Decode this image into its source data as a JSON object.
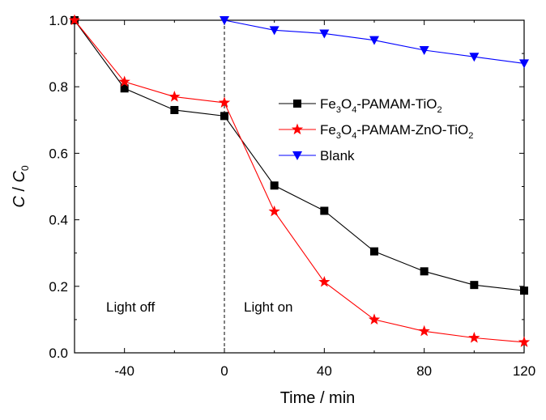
{
  "chart_data": {
    "type": "line",
    "xlabel": "Time / min",
    "ylabel": {
      "main": "C",
      "sep": " / ",
      "sub_main": "C",
      "sub": "0"
    },
    "xlim": [
      -60,
      120
    ],
    "ylim": [
      0,
      1.0
    ],
    "xticks": [
      -40,
      0,
      40,
      80,
      120
    ],
    "xtick_labels": [
      "-40",
      "0",
      "40",
      "80",
      "120"
    ],
    "yticks": [
      0,
      0.2,
      0.4,
      0.6,
      0.8,
      1.0
    ],
    "ytick_labels": [
      "0.0",
      "0.2",
      "0.4",
      "0.6",
      "0.8",
      "1.0"
    ],
    "grid": false,
    "legend_position": "center-right",
    "annotations": {
      "light_off": "Light off",
      "light_on": "Light on"
    },
    "series": [
      {
        "name": "Fe3O4-PAMAM-TiO2",
        "legend_parts": [
          [
            "Fe",
            ""
          ],
          [
            "3",
            "sub"
          ],
          [
            "O",
            ""
          ],
          [
            "4",
            "sub"
          ],
          [
            "-PAMAM-TiO",
            ""
          ],
          [
            "2",
            "sub"
          ]
        ],
        "color": "#000000",
        "marker": "square",
        "x": [
          -60,
          -40,
          -20,
          0,
          20,
          40,
          60,
          80,
          100,
          120
        ],
        "y": [
          1.0,
          0.795,
          0.73,
          0.712,
          0.503,
          0.427,
          0.305,
          0.245,
          0.204,
          0.187
        ]
      },
      {
        "name": "Fe3O4-PAMAM-ZnO-TiO2",
        "legend_parts": [
          [
            "Fe",
            ""
          ],
          [
            "3",
            "sub"
          ],
          [
            "O",
            ""
          ],
          [
            "4",
            "sub"
          ],
          [
            "-PAMAM-ZnO-TiO",
            ""
          ],
          [
            "2",
            "sub"
          ]
        ],
        "color": "#ff0000",
        "marker": "star",
        "x": [
          -60,
          -40,
          -20,
          0,
          20,
          40,
          60,
          80,
          100,
          120
        ],
        "y": [
          1.0,
          0.815,
          0.77,
          0.752,
          0.425,
          0.213,
          0.1,
          0.065,
          0.045,
          0.032
        ]
      },
      {
        "name": "Blank",
        "legend_parts": [
          [
            "Blank",
            ""
          ]
        ],
        "color": "#0000ff",
        "marker": "triangle-down",
        "x": [
          0,
          20,
          40,
          60,
          80,
          100,
          120
        ],
        "y": [
          1.0,
          0.97,
          0.96,
          0.94,
          0.91,
          0.89,
          0.87
        ]
      }
    ]
  }
}
